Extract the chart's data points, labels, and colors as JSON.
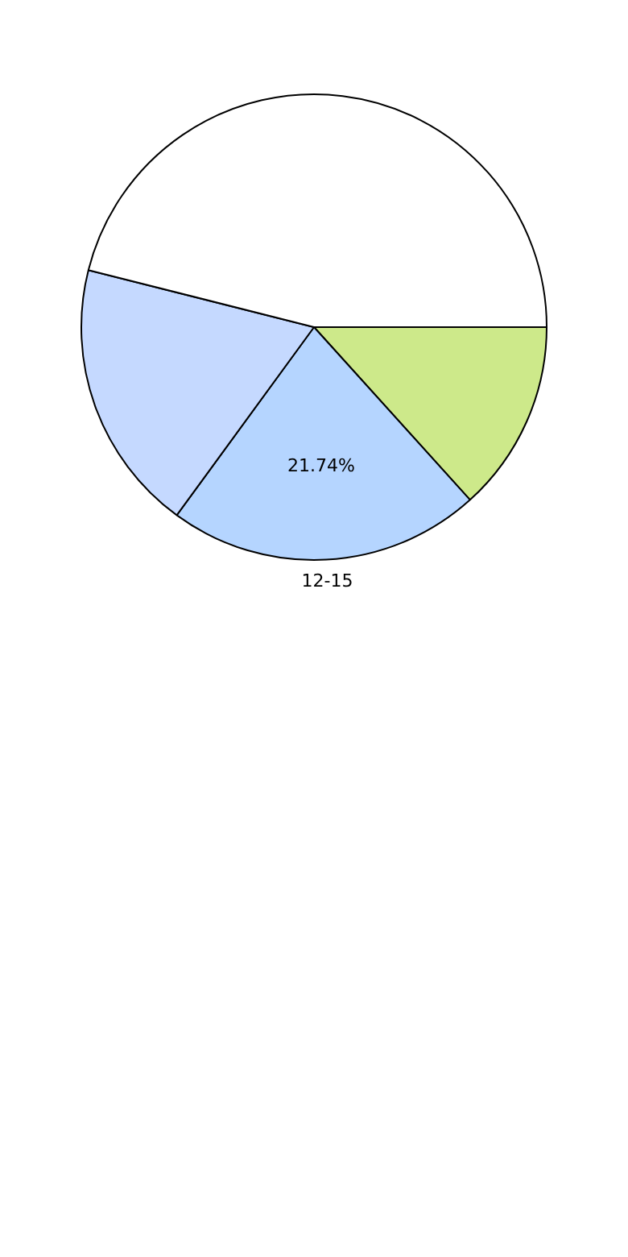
{
  "chart_data": {
    "type": "pie",
    "categories": [
      null,
      "12-15",
      null,
      null
    ],
    "values": [
      13.3,
      21.74,
      18.9,
      46.06
    ],
    "colors": [
      "#cde98a",
      "#b5d5ff",
      "#c5d9ff",
      "#ffffff"
    ],
    "value_labels": [
      null,
      "21.74%",
      null,
      null
    ],
    "legend": false
  }
}
